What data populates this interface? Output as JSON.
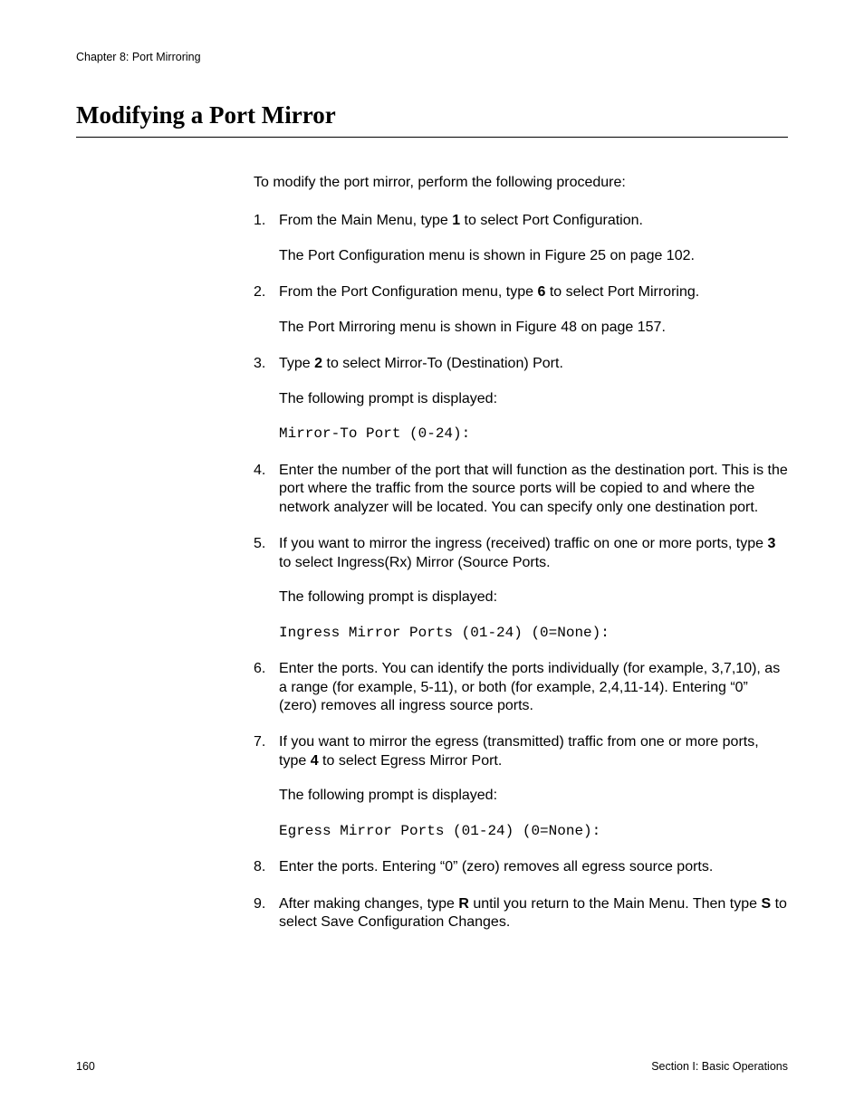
{
  "header": {
    "text": "Chapter 8: Port Mirroring"
  },
  "title": "Modifying a Port Mirror",
  "intro": "To modify the port mirror, perform the following procedure:",
  "steps": {
    "s1": {
      "p1a": "From the Main Menu, type ",
      "p1b": "1",
      "p1c": " to select Port Configuration.",
      "p2": "The Port Configuration menu is shown in Figure 25 on page 102."
    },
    "s2": {
      "p1a": "From the Port Configuration menu, type ",
      "p1b": "6",
      "p1c": " to select Port Mirroring.",
      "p2": "The Port Mirroring menu is shown in Figure 48 on page 157."
    },
    "s3": {
      "p1a": "Type ",
      "p1b": "2",
      "p1c": " to select Mirror-To (Destination) Port.",
      "p2": "The following prompt is displayed:",
      "code": "Mirror-To Port (0-24):"
    },
    "s4": {
      "p1": "Enter the number of the port that will function as the destination port. This is the port where the traffic from the source ports will be copied to and where the network analyzer will be located. You can specify only one destination port."
    },
    "s5": {
      "p1a": "If you want to mirror the ingress (received) traffic on one or more ports, type ",
      "p1b": "3",
      "p1c": " to select Ingress(Rx) Mirror (Source Ports.",
      "p2": "The following prompt is displayed:",
      "code": "Ingress Mirror Ports (01-24) (0=None):"
    },
    "s6": {
      "p1": "Enter the ports. You can identify the ports individually (for example, 3,7,10), as a range (for example, 5-11), or both (for example, 2,4,11-14). Entering “0” (zero) removes all ingress source ports."
    },
    "s7": {
      "p1a": "If you want to mirror the egress (transmitted) traffic from one or more ports, type ",
      "p1b": "4",
      "p1c": " to select Egress Mirror Port.",
      "p2": "The following prompt is displayed:",
      "code": "Egress Mirror Ports (01-24) (0=None):"
    },
    "s8": {
      "p1": "Enter the ports. Entering “0” (zero) removes all egress source ports."
    },
    "s9": {
      "p1a": "After making changes, type ",
      "p1b": "R",
      "p1c": " until you return to the Main Menu. Then type ",
      "p1d": "S",
      "p1e": " to select Save Configuration Changes."
    }
  },
  "footer": {
    "page": "160",
    "section": "Section I: Basic Operations"
  }
}
